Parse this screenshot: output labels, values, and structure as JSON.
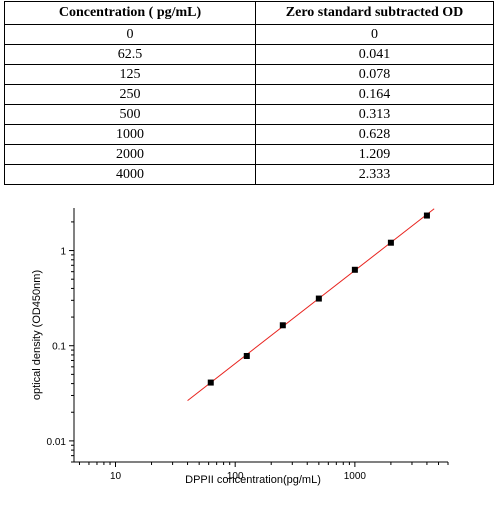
{
  "table": {
    "headers": [
      "Concentration ( pg/mL)",
      "Zero standard subtracted OD"
    ],
    "rows": [
      [
        "0",
        "0"
      ],
      [
        "62.5",
        "0.041"
      ],
      [
        "125",
        "0.078"
      ],
      [
        "250",
        "0.164"
      ],
      [
        "500",
        "0.313"
      ],
      [
        "1000",
        "0.628"
      ],
      [
        "2000",
        "1.209"
      ],
      [
        "4000",
        "2.333"
      ]
    ]
  },
  "chart_data": {
    "type": "scatter",
    "title": "",
    "xlabel": "DPPII  concentration(pg/mL)",
    "ylabel": "optical density (OD450nm)",
    "xscale": "log",
    "yscale": "log",
    "xlim": [
      4.5,
      6000
    ],
    "ylim": [
      0.006,
      2.8
    ],
    "x_ticks": [
      {
        "value": 10,
        "label": "10"
      },
      {
        "value": 100,
        "label": "100"
      },
      {
        "value": 1000,
        "label": "1000"
      }
    ],
    "y_ticks": [
      {
        "value": 0.01,
        "label": "0.01"
      },
      {
        "value": 0.1,
        "label": "0.1"
      },
      {
        "value": 1,
        "label": "1"
      }
    ],
    "series": [
      {
        "x": [
          62.5,
          125,
          250,
          500,
          1000,
          2000,
          4000
        ],
        "y": [
          0.041,
          0.078,
          0.164,
          0.313,
          0.628,
          1.209,
          2.333
        ],
        "marker": "square",
        "color": "#000000"
      }
    ],
    "fit_line": {
      "x": [
        40,
        4600
      ],
      "y": [
        0.0265,
        2.75
      ],
      "color": "#e8231e"
    },
    "grid": false,
    "legend": "none"
  }
}
